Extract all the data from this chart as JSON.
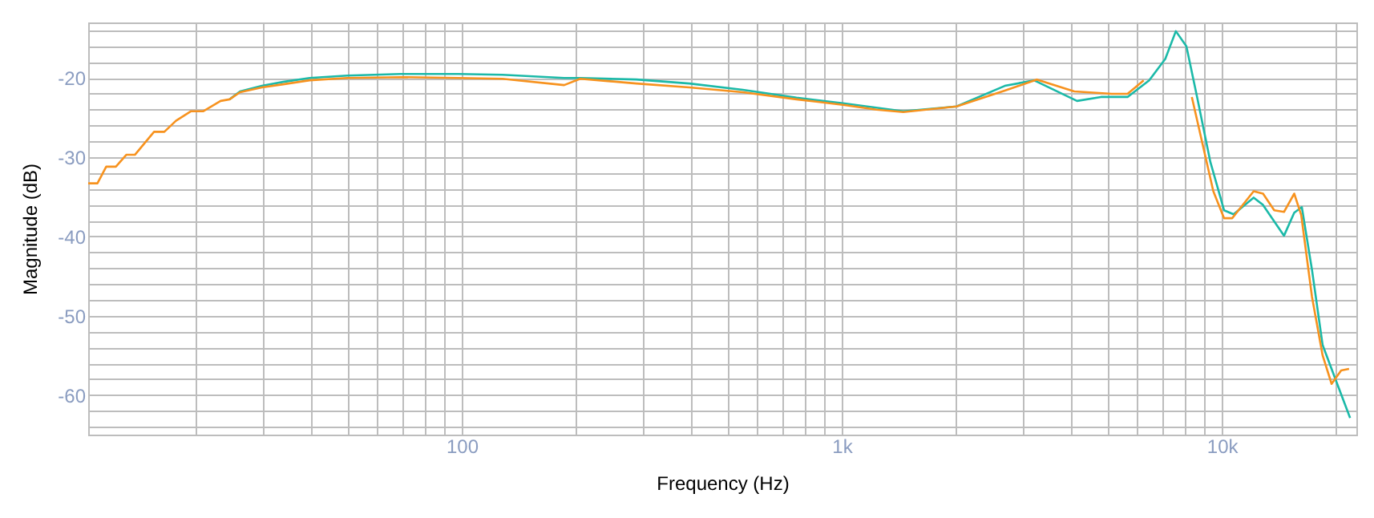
{
  "chart_data": {
    "type": "line",
    "xlabel": "Frequency (Hz)",
    "ylabel": "Magnitude (dB)",
    "log": "x",
    "grid": true,
    "marker": "none",
    "line_style": "solid",
    "xlim": [
      10.4,
      22600
    ],
    "ylim": [
      -65,
      -13
    ],
    "xticks": [
      {
        "value": 20,
        "label": null
      },
      {
        "value": 30,
        "label": null
      },
      {
        "value": 40,
        "label": null
      },
      {
        "value": 50,
        "label": null
      },
      {
        "value": 60,
        "label": null
      },
      {
        "value": 70,
        "label": null
      },
      {
        "value": 80,
        "label": null
      },
      {
        "value": 90,
        "label": null
      },
      100,
      {
        "value": 200,
        "label": null
      },
      {
        "value": 300,
        "label": null
      },
      {
        "value": 400,
        "label": null
      },
      {
        "value": 500,
        "label": null
      },
      {
        "value": 600,
        "label": null
      },
      {
        "value": 700,
        "label": null
      },
      {
        "value": 800,
        "label": null
      },
      {
        "value": 900,
        "label": null
      },
      {
        "value": 1000,
        "label": "1k"
      },
      {
        "value": 2000,
        "label": null
      },
      {
        "value": 3000,
        "label": null
      },
      {
        "value": 4000,
        "label": null
      },
      {
        "value": 5000,
        "label": null
      },
      {
        "value": 6000,
        "label": null
      },
      {
        "value": 7000,
        "label": null
      },
      {
        "value": 8000,
        "label": null
      },
      {
        "value": 9000,
        "label": null
      },
      {
        "value": 10000,
        "label": "10k"
      },
      {
        "value": 20000,
        "label": null
      }
    ],
    "yticks": [
      {
        "value": -64,
        "label": null
      },
      {
        "value": -62,
        "label": null
      },
      -60,
      {
        "value": -58,
        "label": null
      },
      {
        "value": -56,
        "label": null
      },
      {
        "value": -54,
        "label": null
      },
      {
        "value": -52,
        "label": null
      },
      -50,
      {
        "value": -48,
        "label": null
      },
      {
        "value": -46,
        "label": null
      },
      {
        "value": -44,
        "label": null
      },
      {
        "value": -42,
        "label": null
      },
      -40,
      {
        "value": -38,
        "label": null
      },
      {
        "value": -36,
        "label": null
      },
      {
        "value": -34,
        "label": null
      },
      {
        "value": -32,
        "label": null
      },
      -30,
      {
        "value": -28,
        "label": null
      },
      {
        "value": -26,
        "label": null
      },
      {
        "value": -24,
        "label": null
      },
      {
        "value": -22,
        "label": null
      },
      -20,
      {
        "value": -18,
        "label": null
      },
      {
        "value": -16,
        "label": null
      },
      {
        "value": -14,
        "label": null
      }
    ],
    "series": [
      {
        "color": "#1bb9a8",
        "x": [
          24.5,
          26.1,
          29.8,
          33.9,
          39.8,
          50,
          69,
          98,
          128,
          186,
          205,
          288,
          397,
          549,
          760,
          1007,
          1452,
          2005,
          2685,
          3206,
          4160,
          4810,
          5650,
          6440,
          7100,
          7570,
          8070,
          8610,
          9330,
          10140,
          10740,
          12130,
          12820,
          14580,
          15510,
          16240,
          17270,
          18420,
          20050,
          21760
        ],
        "values": [
          -22.7,
          -21.7,
          -21.0,
          -20.5,
          -20.0,
          -19.7,
          -19.5,
          -19.5,
          -19.6,
          -20.0,
          -20.0,
          -20.2,
          -20.7,
          -21.5,
          -22.5,
          -23.2,
          -24.2,
          -23.6,
          -21.0,
          -20.3,
          -22.9,
          -22.4,
          -22.4,
          -20.3,
          -17.6,
          -14.1,
          -16.0,
          -22.4,
          -30.6,
          -36.7,
          -37.2,
          -35.1,
          -36.0,
          -39.9,
          -37.0,
          -36.3,
          -44.2,
          -53.7,
          -58.4,
          -62.9
        ]
      },
      {
        "color": "#f7921e",
        "x": [
          10.4,
          11.0,
          11.6,
          12.3,
          13.1,
          13.8,
          15.5,
          16.5,
          17.7,
          19.4,
          20.9,
          23.2,
          24.5,
          26.1,
          29.8,
          33.9,
          39.8,
          50,
          69,
          98,
          128,
          186,
          205,
          288,
          397,
          549,
          760,
          1007,
          1235,
          1452,
          2005,
          2685,
          3261,
          4090,
          5130,
          5650,
          6230,
          7210,
          7570,
          8340,
          9500,
          10140,
          10650,
          12130,
          12840,
          13740,
          14580,
          15510,
          16180,
          17270,
          18420,
          19450,
          20610,
          21620
        ],
        "values": [
          -33.3,
          -33.3,
          -31.2,
          -31.2,
          -29.7,
          -29.7,
          -26.8,
          -26.8,
          -25.4,
          -24.2,
          -24.2,
          -22.9,
          -22.7,
          -21.8,
          -21.2,
          -20.8,
          -20.3,
          -20.0,
          -19.9,
          -20.0,
          -20.1,
          -20.9,
          -20.1,
          -20.7,
          -21.2,
          -21.8,
          -22.7,
          -23.4,
          -24.0,
          -24.3,
          -23.6,
          -21.6,
          -20.2,
          -21.7,
          -22.0,
          -22.0,
          -20.3,
          null,
          null,
          -22.4,
          -34.3,
          -37.7,
          -37.7,
          -34.3,
          -34.6,
          -36.7,
          -36.9,
          -34.6,
          -37.3,
          -47.6,
          -55.0,
          -58.6,
          -56.9,
          -56.7
        ]
      }
    ]
  }
}
